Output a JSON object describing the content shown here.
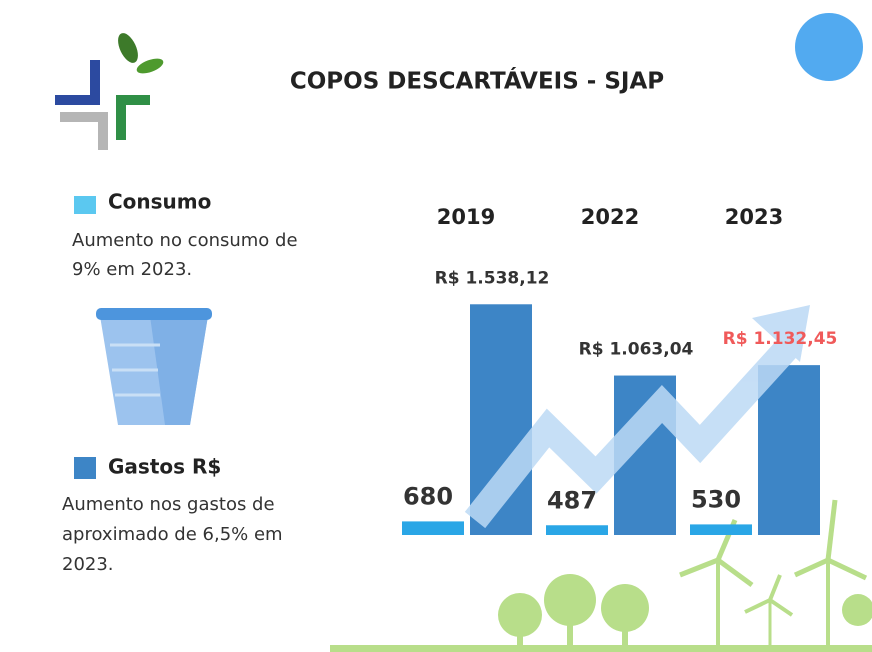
{
  "header": {
    "title": "COPOS DESCARTÁVEIS - SJAP"
  },
  "notes": [
    "Aumento no consumo de 9% em 2023.",
    "Aumento nos gastos de aproximado de 6,5% em 2023."
  ],
  "chart_data": {
    "type": "bar",
    "categories": [
      "2019",
      "2022",
      "2023"
    ],
    "series": [
      {
        "name": "Consumo",
        "color": "#2aa6e6",
        "legend_color": "#5bc8f0",
        "values": [
          680,
          487,
          530
        ]
      },
      {
        "name": "Gastos R$",
        "color": "#3d85c6",
        "legend_color": "#3d85c6",
        "values": [
          1538.12,
          1063.04,
          1132.45
        ],
        "value_labels": [
          "R$ 1.538,12",
          "R$ 1.063,04",
          "R$ 1.132,45"
        ],
        "value_label_colors": [
          "#333333",
          "#333333",
          "#f05a5a"
        ]
      }
    ]
  }
}
